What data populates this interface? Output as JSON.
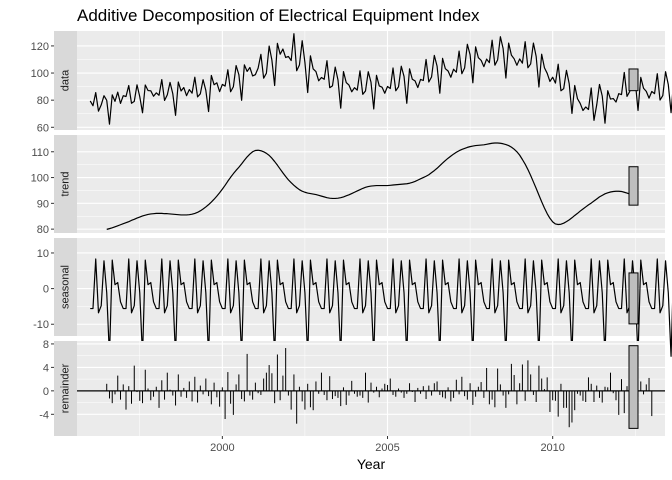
{
  "chart_data": {
    "type": "line",
    "title": "Additive Decomposition of Electrical Equipment Index",
    "xlabel": "Year",
    "x_ticks": [
      2000,
      2005,
      2010
    ],
    "xlim": [
      1995.6,
      2013.4
    ],
    "start_year": 1996.0,
    "frequency": 12,
    "colors": {
      "panel": "#ebebeb",
      "grid": "#ffffff",
      "strip": "#d9d9d9",
      "line": "#000000",
      "range_bar": "#bebebe"
    },
    "panels": [
      {
        "name": "data",
        "label": "data",
        "kind": "line",
        "ylim": [
          58,
          131
        ],
        "y_ticks": [
          60,
          80,
          100,
          120
        ],
        "values": [
          79.4,
          75.9,
          85.6,
          71.9,
          76.5,
          83.3,
          79.9,
          62.3,
          83.9,
          79.1,
          85.9,
          77.6,
          83.3,
          82.7,
          90.8,
          77.7,
          79.1,
          91.3,
          82.6,
          70.7,
          91.2,
          87.1,
          86.9,
          82.9,
          85.4,
          83.6,
          95.2,
          79.8,
          83.9,
          93.1,
          84.7,
          68.8,
          93.4,
          86.8,
          89.3,
          83.3,
          87.8,
          85.2,
          96.9,
          82.4,
          84.7,
          95.1,
          87.2,
          71.6,
          98.2,
          91.4,
          92.8,
          86.3,
          91.6,
          90.4,
          102.4,
          86.2,
          89.9,
          105.5,
          98.8,
          79.9,
          106.0,
          101.2,
          104.1,
          97.9,
          98.8,
          103.6,
          113.8,
          96.2,
          99.9,
          119.9,
          109.5,
          90.8,
          121.9,
          113.9,
          117.7,
          111.5,
          112.2,
          109.2,
          129.0,
          101.7,
          105.9,
          123.8,
          107.7,
          85.6,
          112.7,
          103.0,
          101.1,
          94.3,
          96.7,
          95.4,
          109.1,
          89.2,
          90.5,
          104.4,
          95.0,
          74.1,
          101.1,
          93.0,
          91.1,
          86.2,
          89.2,
          87.4,
          101.6,
          84.3,
          86.8,
          101.0,
          93.2,
          73.5,
          98.3,
          90.5,
          89.6,
          85.1,
          90.1,
          88.6,
          103.7,
          86.9,
          89.9,
          105.0,
          97.5,
          77.7,
          103.1,
          95.4,
          94.2,
          89.3,
          95.3,
          94.5,
          110.0,
          93.4,
          97.1,
          113.0,
          105.1,
          85.1,
          110.8,
          103.2,
          101.5,
          96.9,
          102.8,
          100.6,
          116.2,
          99.5,
          103.7,
          121.2,
          113.5,
          92.8,
          119.3,
          111.3,
          109.4,
          104.7,
          110.3,
          107.7,
          124.2,
          105.8,
          109.7,
          126.8,
          118.0,
          96.3,
          122.1,
          113.2,
          110.5,
          105.7,
          110.4,
          107.3,
          123.1,
          103.9,
          106.7,
          122.1,
          112.2,
          89.7,
          113.9,
          103.9,
          99.8,
          93.8,
          96.9,
          92.6,
          106.5,
          86.9,
          88.5,
          102.0,
          92.1,
          70.2,
          90.8,
          81.1,
          77.6,
          72.4,
          75.0,
          73.1,
          89.0,
          65.1,
          76.6,
          91.6,
          83.1,
          63.0,
          87.0,
          80.8,
          81.2,
          78.6,
          84.8,
          84.1,
          100.4,
          82.8,
          86.4,
          102.9,
          93.7,
          72.4,
          96.8,
          88.8,
          86.5,
          81.5,
          86.4,
          84.8,
          99.5,
          80.1,
          83.4,
          101.0,
          91.5,
          70.8,
          95.7,
          87.4,
          84.9,
          80.0,
          84.5,
          83.0,
          97.1
        ],
        "range_bar": [
          87,
          103
        ]
      },
      {
        "name": "trend",
        "label": "trend",
        "kind": "line",
        "ylim": [
          78.5,
          116.5
        ],
        "y_ticks": [
          80,
          90,
          100,
          110
        ],
        "values": [
          null,
          null,
          null,
          null,
          null,
          null,
          79.9,
          80.2,
          80.5,
          80.9,
          81.3,
          81.7,
          82.1,
          82.5,
          82.9,
          83.4,
          83.8,
          84.3,
          84.7,
          85.1,
          85.4,
          85.7,
          85.9,
          86.0,
          86.1,
          86.1,
          86.1,
          86.0,
          86.0,
          85.9,
          85.8,
          85.7,
          85.6,
          85.5,
          85.5,
          85.5,
          85.6,
          85.8,
          86.1,
          86.5,
          87.1,
          87.8,
          88.6,
          89.5,
          90.5,
          91.6,
          92.8,
          94.1,
          95.5,
          97.0,
          98.6,
          100.1,
          101.5,
          102.8,
          104.0,
          105.3,
          106.7,
          108.0,
          109.1,
          110.0,
          110.5,
          110.6,
          110.4,
          110.0,
          109.4,
          108.6,
          107.5,
          106.2,
          104.8,
          103.3,
          101.8,
          100.4,
          99.1,
          98.0,
          97.0,
          96.1,
          95.3,
          94.7,
          94.3,
          94.0,
          93.8,
          93.6,
          93.4,
          93.1,
          92.8,
          92.5,
          92.2,
          92.0,
          91.9,
          91.9,
          92.0,
          92.2,
          92.5,
          92.9,
          93.3,
          93.8,
          94.3,
          94.8,
          95.3,
          95.8,
          96.2,
          96.5,
          96.7,
          96.8,
          96.9,
          96.9,
          96.9,
          96.9,
          96.9,
          97.0,
          97.1,
          97.2,
          97.3,
          97.4,
          97.5,
          97.6,
          97.8,
          98.1,
          98.5,
          99.0,
          99.5,
          100.0,
          100.5,
          101.1,
          101.9,
          102.7,
          103.6,
          104.6,
          105.6,
          106.6,
          107.5,
          108.3,
          109.1,
          109.8,
          110.4,
          110.9,
          111.3,
          111.7,
          112.0,
          112.2,
          112.4,
          112.5,
          112.6,
          112.7,
          112.9,
          113.1,
          113.3,
          113.4,
          113.4,
          113.3,
          113.1,
          112.8,
          112.4,
          111.8,
          111.0,
          110.0,
          108.7,
          107.0,
          105.2,
          103.1,
          100.8,
          98.3,
          95.8,
          93.2,
          90.6,
          88.2,
          86.0,
          84.2,
          82.8,
          82.0,
          81.8,
          81.9,
          82.3,
          82.9,
          83.6,
          84.4,
          85.3,
          86.1,
          87.0,
          87.8,
          88.6,
          89.4,
          90.1,
          90.9,
          91.7,
          92.5,
          93.1,
          93.7,
          94.1,
          94.4,
          94.6,
          94.7,
          94.7,
          94.6,
          94.3,
          94.0,
          93.6,
          93.2,
          92.8,
          92.4,
          null,
          null,
          null,
          null,
          null,
          null
        ],
        "range_bar": [
          89.3,
          104.2
        ]
      },
      {
        "name": "seasonal",
        "label": "seasonal",
        "kind": "line",
        "ylim": [
          -13.3,
          14.2
        ],
        "y_ticks": [
          -10,
          0,
          10
        ],
        "values": [
          -5.6,
          -5.6,
          8.3,
          -6.8,
          -4.8,
          7.8,
          -1.2,
          -19.0,
          8.0,
          1.1,
          1.7,
          -3.7,
          -5.6,
          -5.6,
          8.3,
          -6.8,
          -4.8,
          7.8,
          -1.2,
          -19.0,
          8.0,
          1.1,
          1.7,
          -3.7,
          -5.6,
          -5.6,
          8.3,
          -6.8,
          -4.8,
          7.8,
          -1.2,
          -19.0,
          8.0,
          1.1,
          1.7,
          -3.7,
          -5.6,
          -5.6,
          8.3,
          -6.8,
          -4.8,
          7.8,
          -1.2,
          -19.0,
          8.0,
          1.1,
          1.7,
          -3.7,
          -5.6,
          -5.6,
          8.3,
          -6.8,
          -4.8,
          7.8,
          -1.2,
          -19.0,
          8.0,
          1.1,
          1.7,
          -3.7,
          -5.6,
          -5.6,
          8.3,
          -6.8,
          -4.8,
          7.8,
          -1.2,
          -19.0,
          8.0,
          1.1,
          1.7,
          -3.7,
          -5.6,
          -5.6,
          8.3,
          -6.8,
          -4.8,
          7.8,
          -1.2,
          -19.0,
          8.0,
          1.1,
          1.7,
          -3.7,
          -5.6,
          -5.6,
          8.3,
          -6.8,
          -4.8,
          7.8,
          -1.2,
          -19.0,
          8.0,
          1.1,
          1.7,
          -3.7,
          -5.6,
          -5.6,
          8.3,
          -6.8,
          -4.8,
          7.8,
          -1.2,
          -19.0,
          8.0,
          1.1,
          1.7,
          -3.7,
          -5.6,
          -5.6,
          8.3,
          -6.8,
          -4.8,
          7.8,
          -1.2,
          -19.0,
          8.0,
          1.1,
          1.7,
          -3.7,
          -5.6,
          -5.6,
          8.3,
          -6.8,
          -4.8,
          7.8,
          -1.2,
          -19.0,
          8.0,
          1.1,
          1.7,
          -3.7,
          -5.6,
          -5.6,
          8.3,
          -6.8,
          -4.8,
          7.8,
          -1.2,
          -19.0,
          8.0,
          1.1,
          1.7,
          -3.7,
          -5.6,
          -5.6,
          8.3,
          -6.8,
          -4.8,
          7.8,
          -1.2,
          -19.0,
          8.0,
          1.1,
          1.7,
          -3.7,
          -5.6,
          -5.6,
          8.3,
          -6.8,
          -4.8,
          7.8,
          -1.2,
          -19.0,
          8.0,
          1.1,
          1.7,
          -3.7,
          -5.6,
          -5.6,
          8.3,
          -6.8,
          -4.8,
          7.8,
          -1.2,
          -19.0,
          8.0,
          1.1,
          1.7,
          -3.7,
          -5.6,
          -5.6,
          8.3,
          -6.8,
          -4.8,
          7.8,
          -1.2,
          -19.0,
          8.0,
          1.1,
          1.7,
          -3.7,
          -5.6,
          -5.6,
          8.3,
          -6.8,
          -4.8,
          7.8,
          -1.2,
          -19.0,
          8.0,
          1.1,
          1.7,
          -3.7,
          -5.6,
          -5.6,
          8.3,
          -6.8,
          -4.8,
          7.8,
          -1.2,
          -19.0,
          8.0,
          1.1,
          1.7,
          -3.7,
          -5.6,
          -5.6,
          8.3,
          -6.8,
          -4.8,
          7.8,
          -1.2,
          -19.0,
          8.0,
          1.1,
          1.7,
          -3.7,
          -5.6,
          -5.6,
          8.3
        ],
        "range_bar": [
          -9.9,
          4.4
        ]
      },
      {
        "name": "remainder",
        "label": "remainder",
        "kind": "bar",
        "ylim": [
          -7.7,
          8.5
        ],
        "y_ticks": [
          -4,
          0,
          4,
          8
        ],
        "baseline": 0,
        "values": [
          null,
          null,
          null,
          null,
          null,
          null,
          1.2,
          -1.3,
          -2.1,
          -0.6,
          2.6,
          -1.5,
          1.1,
          -3.2,
          0.8,
          -2.2,
          4.3,
          -0.2,
          -1.7,
          -2.1,
          3.6,
          0.4,
          -1.6,
          -1.0,
          0.7,
          -2.9,
          1.8,
          -1.5,
          3.1,
          0.2,
          -0.8,
          -2.5,
          2.8,
          -1.0,
          0.5,
          -1.2,
          1.6,
          -1.8,
          2.4,
          -2.0,
          0.9,
          -0.6,
          2.1,
          -0.9,
          -2.3,
          1.4,
          -1.1,
          -2.7,
          0.6,
          -4.8,
          3.2,
          -2.2,
          -4.1,
          1.1,
          2.8,
          -1.4,
          -1.8,
          6.3,
          -0.8,
          -1.5,
          1.4,
          -0.4,
          -0.7,
          2.1,
          3.1,
          4.4,
          3.0,
          -2.1,
          6.2,
          -1.6,
          2.6,
          7.3,
          -0.8,
          -3.2,
          2.8,
          -5.6,
          0.7,
          -1.8,
          -3.2,
          1.2,
          -2.8,
          -3.3,
          1.6,
          -0.5,
          3.1,
          -0.7,
          -1.6,
          2.5,
          -1.4,
          -0.9,
          -1.2,
          -2.6,
          0.6,
          -2.4,
          -0.8,
          1.7,
          -0.5,
          -1.0,
          -0.8,
          -1.2,
          3.1,
          -2.0,
          1.4,
          -0.3,
          0.7,
          -1.1,
          0.4,
          1.2,
          1.0,
          2.1,
          -0.7,
          -1.0,
          0.4,
          -0.3,
          -1.2,
          -0.5,
          1.3,
          -0.2,
          -1.9,
          0.5,
          -0.5,
          0.8,
          -1.4,
          0.9,
          -0.8,
          1.3,
          1.6,
          -0.7,
          -1.1,
          -1.3,
          0.6,
          -1.8,
          -1.2,
          1.9,
          -0.6,
          2.4,
          -0.9,
          -1.5,
          1.3,
          -2.4,
          -1.0,
          0.7,
          1.5,
          -1.2,
          3.9,
          -2.3,
          -1.5,
          -2.8,
          3.8,
          1.1,
          -0.8,
          -2.9,
          -0.6,
          4.6,
          2.7,
          -2.3,
          1.3,
          4.5,
          -1.7,
          5.2,
          2.8,
          -0.7,
          -1.9,
          4.3,
          2.1,
          0.3,
          2.3,
          -3.6,
          -1.6,
          -1.7,
          -4.4,
          1.2,
          -2.9,
          -2.9,
          -6.2,
          -5.4,
          -3.3,
          -0.5,
          -0.8,
          -1.7,
          -1.9,
          2.3,
          1.2,
          -1.9,
          0.9,
          -1.2,
          -2.0,
          0.7,
          0.6,
          3.1,
          -0.4,
          -1.6,
          -4.1,
          2.0,
          -3.8,
          0.8,
          -3.2,
          1.8,
          4.3,
          -1.1,
          1.6,
          -0.6,
          1.1,
          2.2,
          -4.3,
          null,
          null,
          null,
          null,
          null,
          null
        ],
        "range_bar": [
          -6.4,
          7.7
        ]
      }
    ]
  }
}
